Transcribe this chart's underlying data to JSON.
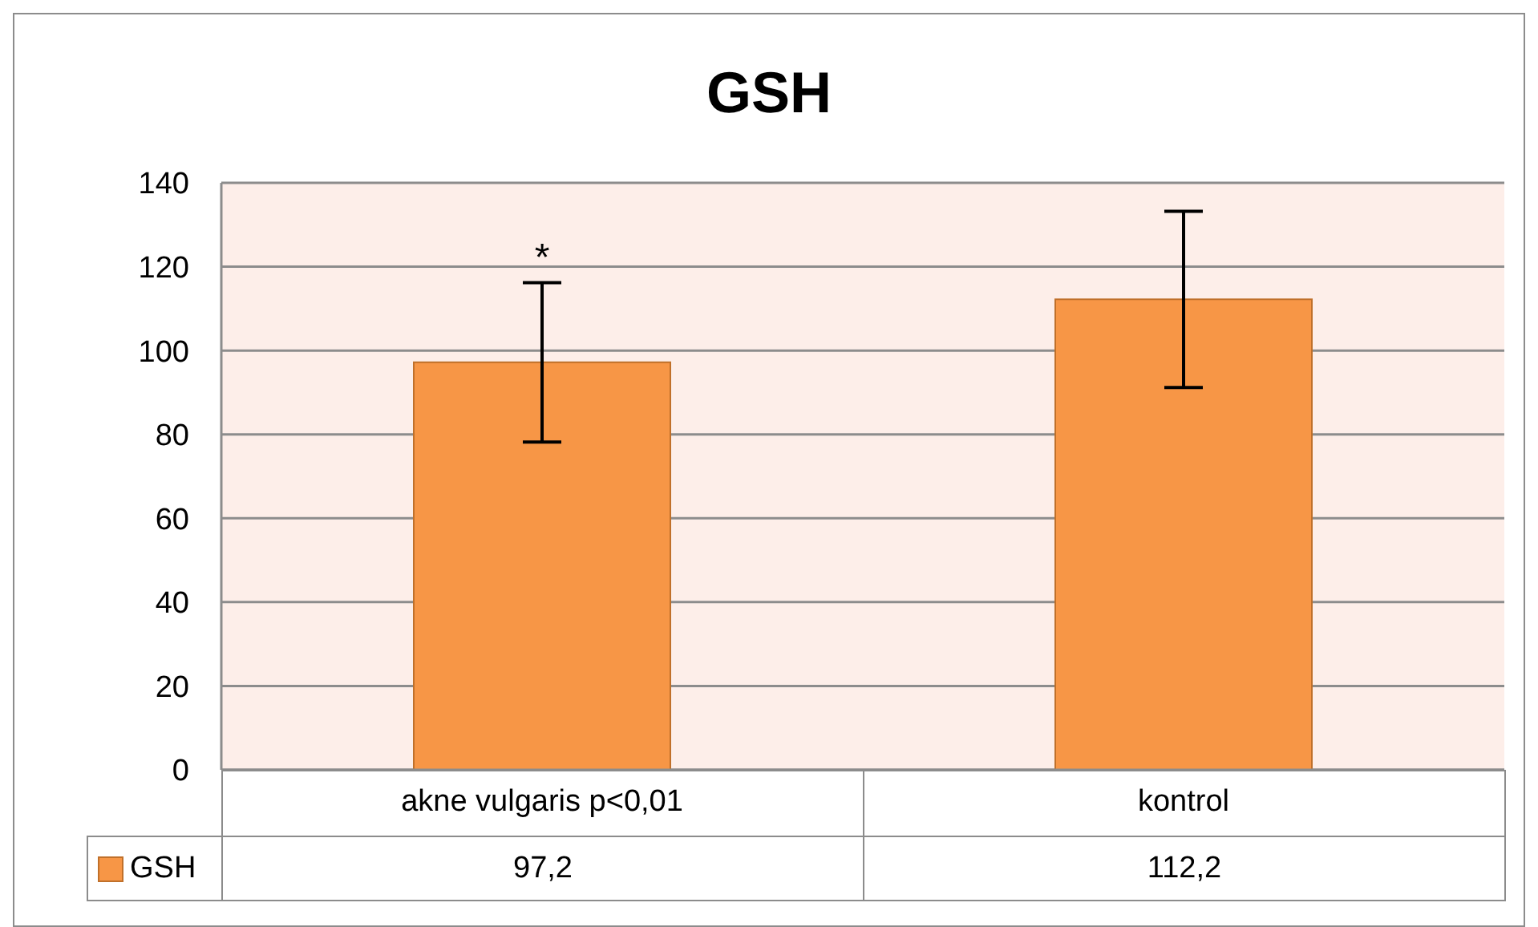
{
  "chart_data": {
    "type": "bar",
    "title": "GSH",
    "categories": [
      "akne vulgaris  p<0,01",
      "kontrol"
    ],
    "series": [
      {
        "name": "GSH",
        "color": "#f79646",
        "values": [
          97.2,
          112.2
        ],
        "errors": [
          19,
          21
        ],
        "value_labels": [
          "97,2",
          "112,2"
        ]
      }
    ],
    "ylim": [
      0,
      140
    ],
    "yticks": [
      0,
      20,
      40,
      60,
      80,
      100,
      120,
      140
    ],
    "grid": "y",
    "legend": "bottom",
    "annotations": [
      {
        "text": "*",
        "x": "akne vulgaris  p<0,01",
        "y": 116
      }
    ]
  }
}
